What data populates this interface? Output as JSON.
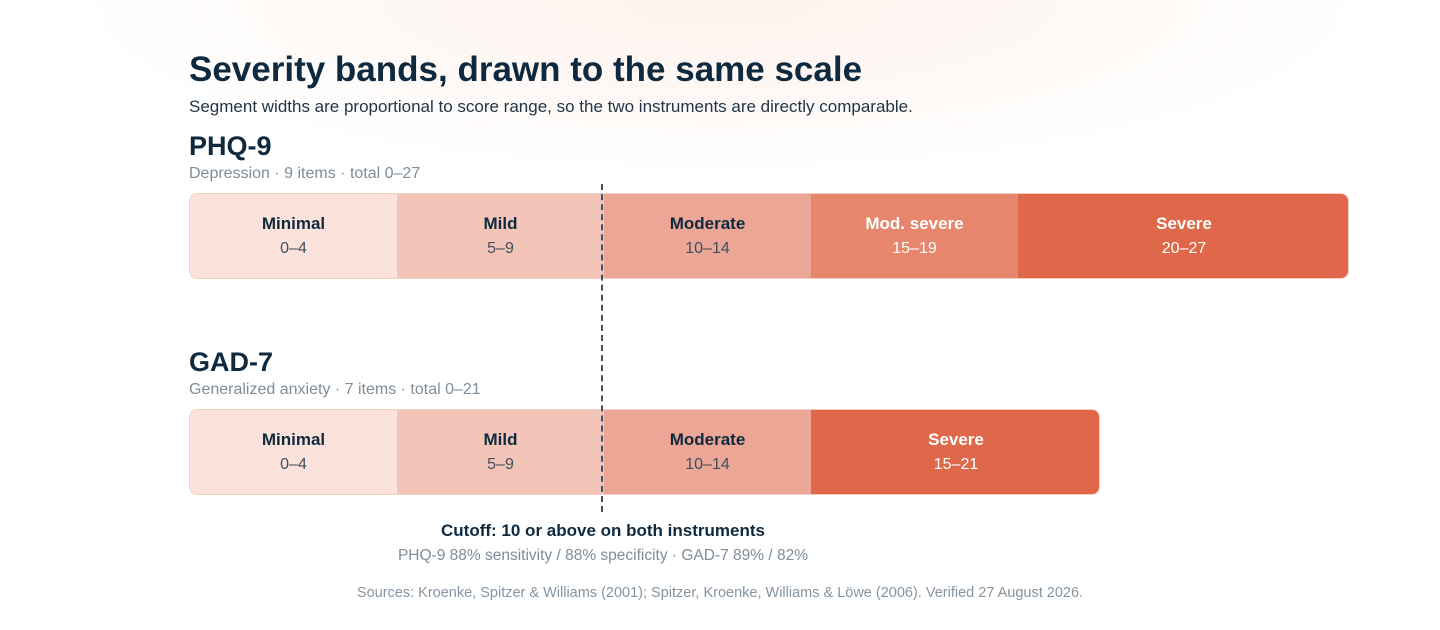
{
  "title": "Severity bands, drawn to the same scale",
  "subtitle": "Segment widths are proportional to score range, so the two instruments are directly comparable.",
  "instruments": [
    {
      "name": "PHQ-9",
      "meta": "Depression · 9 items · total 0–27",
      "bands": [
        {
          "label": "Minimal",
          "range": "0–4",
          "fill": "#fbe3dc",
          "text": "#0f2a3f",
          "rangeColor": "#3d4f5e"
        },
        {
          "label": "Mild",
          "range": "5–9",
          "fill": "#f3c4b8",
          "text": "#0f2a3f",
          "rangeColor": "#3d4f5e"
        },
        {
          "label": "Moderate",
          "range": "10–14",
          "fill": "#eca695",
          "text": "#0f2a3f",
          "rangeColor": "#3d4f5e"
        },
        {
          "label": "Mod. severe",
          "range": "15–19",
          "fill": "#e6866d",
          "text": "#ffffff",
          "rangeColor": "#ffffff"
        },
        {
          "label": "Severe",
          "range": "20–27",
          "fill": "#df674a",
          "text": "#ffffff",
          "rangeColor": "#ffffff"
        }
      ]
    },
    {
      "name": "GAD-7",
      "meta": "Generalized anxiety · 7 items · total 0–21",
      "bands": [
        {
          "label": "Minimal",
          "range": "0–4",
          "fill": "#fbe3dc",
          "text": "#0f2a3f",
          "rangeColor": "#3d4f5e"
        },
        {
          "label": "Mild",
          "range": "5–9",
          "fill": "#f3c4b8",
          "text": "#0f2a3f",
          "rangeColor": "#3d4f5e"
        },
        {
          "label": "Moderate",
          "range": "10–14",
          "fill": "#eca695",
          "text": "#0f2a3f",
          "rangeColor": "#3d4f5e"
        },
        {
          "label": "Severe",
          "range": "15–21",
          "fill": "#df674a",
          "text": "#ffffff",
          "rangeColor": "#ffffff"
        }
      ]
    }
  ],
  "cutoff": {
    "title": "Cutoff: 10 or above on both instruments",
    "detail": "PHQ-9 88% sensitivity / 88% specificity · GAD-7 89% / 82%"
  },
  "sources": "Sources: Kroenke, Spitzer & Williams (2001); Spitzer, Kroenke, Williams & Löwe (2006). Verified 27 August 2026."
}
